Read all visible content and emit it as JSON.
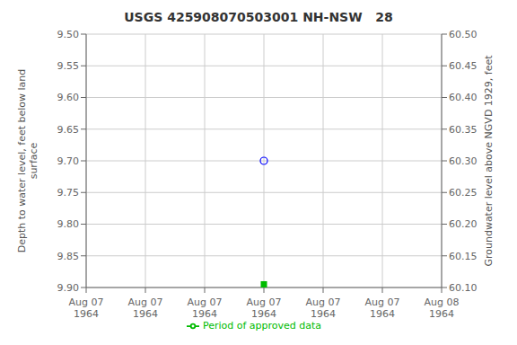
{
  "chart_data": {
    "type": "scatter",
    "title": "USGS 425908070503001 NH-NSW   28",
    "y_label": "Depth to water level, feet below land\nsurface",
    "y2_label": "Groundwater level above NGVD 1929, feet",
    "categories": [
      "Aug 07\n1964",
      "Aug 07\n1964",
      "Aug 07\n1964",
      "Aug 07\n1964",
      "Aug 07\n1964",
      "Aug 07\n1964",
      "Aug 08\n1964"
    ],
    "series": [
      {
        "color": "blue",
        "marker": "open_circle",
        "values": [
          null,
          null,
          null,
          9.7,
          null,
          null,
          null
        ]
      },
      {
        "name": "Period of approved data",
        "color": "#00bb00",
        "marker": "square",
        "values": [
          null,
          null,
          null,
          9.895,
          null,
          null,
          null
        ]
      }
    ],
    "ylim": [
      9.9,
      9.5
    ],
    "yticks": [
      {
        "value": 9.5,
        "label": "9.50"
      },
      9.55,
      {
        "value": 9.6,
        "label": "9.60"
      },
      9.65,
      {
        "value": 9.7,
        "label": "9.70"
      },
      9.75,
      {
        "value": 9.8,
        "label": "9.80"
      },
      9.85,
      {
        "value": 9.9,
        "label": "9.90"
      }
    ],
    "y2lim": [
      60.1,
      60.5
    ],
    "y2ticks": [
      {
        "value": 60.5,
        "label": "60.50"
      },
      60.45,
      {
        "value": 60.4,
        "label": "60.40"
      },
      60.35,
      {
        "value": 60.3,
        "label": "60.30"
      },
      60.25,
      {
        "value": 60.2,
        "label": "60.20"
      },
      60.15,
      {
        "value": 60.1,
        "label": "60.10"
      }
    ],
    "grid": true
  }
}
